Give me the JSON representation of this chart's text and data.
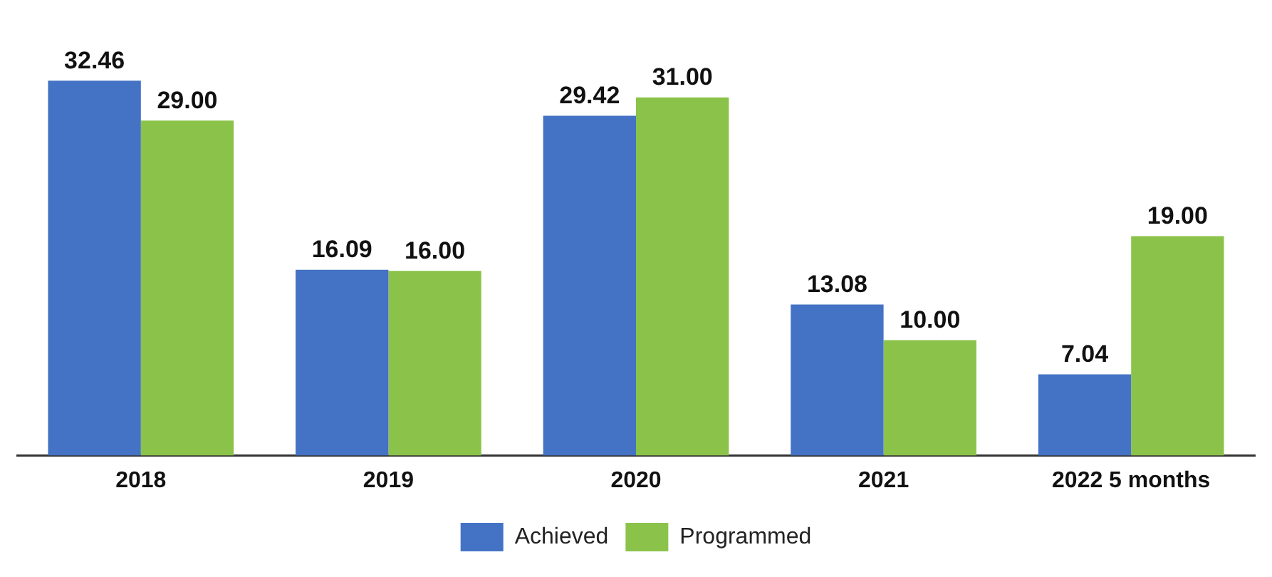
{
  "chart_data": {
    "type": "bar",
    "categories": [
      "2018",
      "2019",
      "2020",
      "2021",
      "2022 5 months"
    ],
    "legend": "bottom",
    "grid": false,
    "series": [
      {
        "name": "Achieved",
        "color": "#4472c4",
        "values": [
          32.46,
          16.09,
          29.42,
          13.08,
          7.04
        ],
        "value_labels": [
          "32.46",
          "16.09",
          "29.42",
          "13.08",
          "7.04"
        ]
      },
      {
        "name": "Programmed",
        "color": "#8bc34a",
        "values": [
          29.0,
          16.0,
          31.0,
          10.0,
          19.0
        ],
        "value_labels": [
          "29.00",
          "16.00",
          "31.00",
          "10.00",
          "19.00"
        ]
      }
    ]
  }
}
